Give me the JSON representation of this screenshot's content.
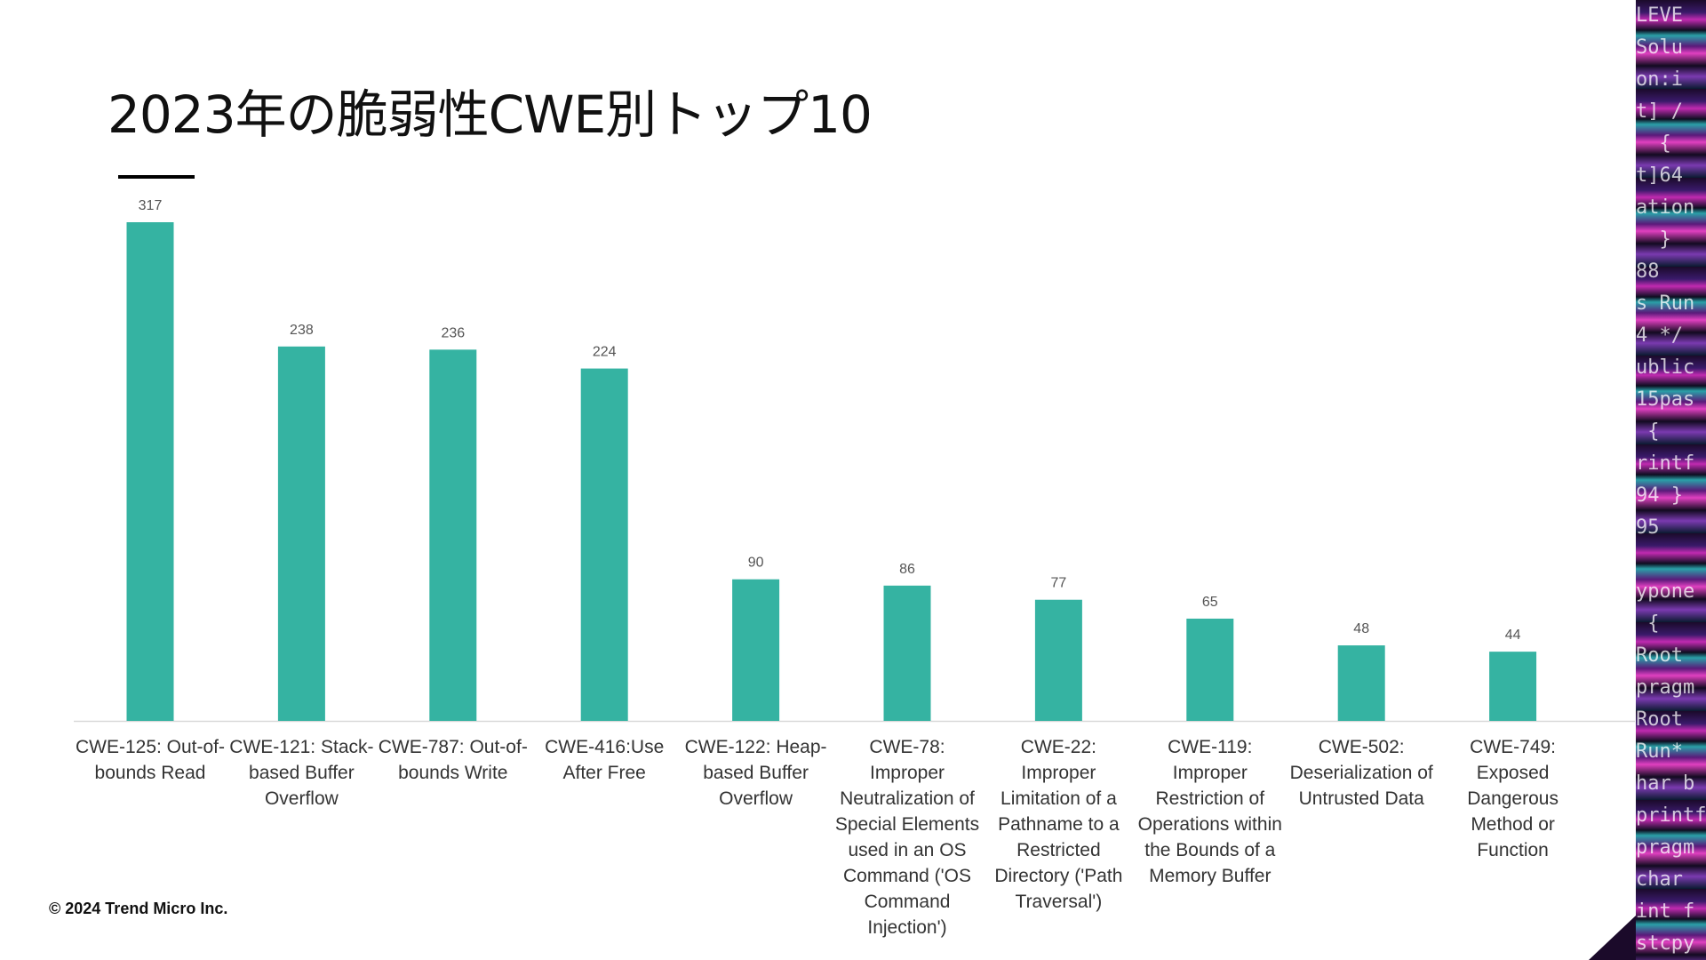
{
  "chart_data": {
    "type": "bar",
    "title": "2023年の脆弱性CWE別トップ10",
    "categories": [
      "CWE-125: Out-of-bounds Read",
      "CWE-121: Stack-based Buffer Overflow",
      "CWE-787: Out-of-bounds Write",
      "CWE-416:Use After Free",
      "CWE-122: Heap-based Buffer Overflow",
      "CWE-78: Improper Neutralization of Special Elements used in an OS Command ('OS Command Injection')",
      "CWE-22: Improper Limitation of a Pathname to a Restricted Directory ('Path Traversal')",
      "CWE-119: Improper Restriction of Operations within the Bounds of a Memory Buffer",
      "CWE-502: Deserialization of Untrusted Data",
      "CWE-749: Exposed Dangerous Method or Function"
    ],
    "values": [
      317,
      238,
      236,
      224,
      90,
      86,
      77,
      65,
      48,
      44
    ],
    "xlabel": "",
    "ylabel": "",
    "ylim": [
      0,
      317
    ],
    "grid": false,
    "bar_color": "#35b3a2"
  },
  "footer": {
    "copyright": "© 2024 Trend Micro Inc."
  }
}
